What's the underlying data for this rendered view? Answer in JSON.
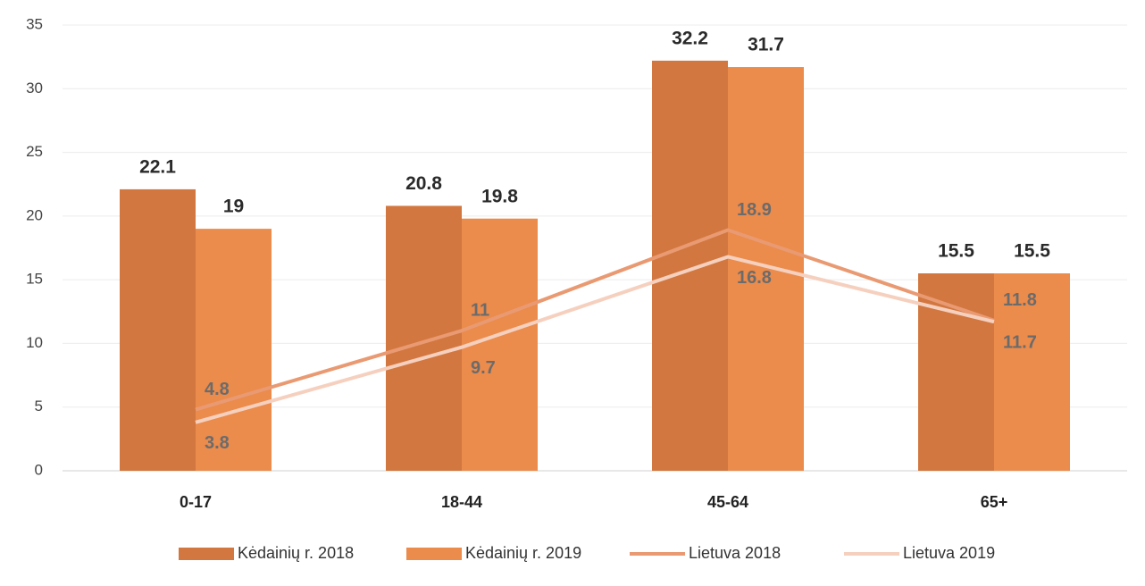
{
  "chart_data": {
    "type": "bar",
    "categories": [
      "0-17",
      "18-44",
      "45-64",
      "65+"
    ],
    "series": [
      {
        "name": "Kėdainių r. 2018",
        "type": "bar",
        "color": "#d2773f",
        "values": [
          22.1,
          20.8,
          32.2,
          15.5
        ]
      },
      {
        "name": "Kėdainių r. 2019",
        "type": "bar",
        "color": "#eb8b4c",
        "values": [
          19,
          19.8,
          31.7,
          15.5
        ]
      },
      {
        "name": "Lietuva 2018",
        "type": "line",
        "color": "#e99a72",
        "values": [
          4.8,
          11,
          18.9,
          11.8
        ]
      },
      {
        "name": "Lietuva 2019",
        "type": "line",
        "color": "#f6d0be",
        "values": [
          3.8,
          9.7,
          16.8,
          11.7
        ]
      }
    ],
    "ylim": [
      0,
      35
    ],
    "yticks": [
      0,
      5,
      10,
      15,
      20,
      25,
      30,
      35
    ],
    "grid": true,
    "legend": "bottom"
  }
}
